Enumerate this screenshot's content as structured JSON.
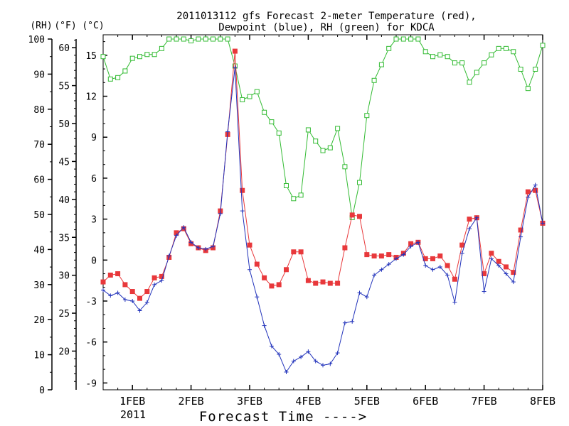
{
  "chart_data": {
    "type": "line",
    "title_line1": "2011013112 gfs Forecast 2-meter Temperature (red),",
    "title_line2": "Dewpoint (blue), RH (green) for KDCA",
    "xlabel": "Forecast Time ---->",
    "year_label": "2011",
    "axis_headers": {
      "rh": "(RH)",
      "f": "(°F)",
      "c": "(°C)"
    },
    "x_ticks": [
      "1FEB",
      "2FEB",
      "3FEB",
      "4FEB",
      "5FEB",
      "6FEB",
      "7FEB",
      "8FEB"
    ],
    "x_tick_positions": [
      1,
      2,
      3,
      4,
      5,
      6,
      7,
      8
    ],
    "xlim": [
      0.5,
      8
    ],
    "rh_ticks": [
      "0",
      "10",
      "20",
      "30",
      "40",
      "50",
      "60",
      "70",
      "80",
      "90",
      "100"
    ],
    "rh_lim": [
      0,
      100
    ],
    "f_ticks": [
      "20",
      "25",
      "30",
      "35",
      "40",
      "45",
      "50",
      "55",
      "60"
    ],
    "c_ticks": [
      "-9",
      "-6",
      "-3",
      "0",
      "3",
      "6",
      "9",
      "12",
      "15"
    ],
    "c_lim": [
      -9.5,
      16.5
    ],
    "grid": false,
    "colors": {
      "temperature": "#e8383b",
      "dewpoint": "#2233bb",
      "rh": "#33bb33"
    },
    "series": [
      {
        "name": "Temperature",
        "units": "C",
        "marker": "filled-square",
        "points": [
          [
            0.5,
            -1.6
          ],
          [
            0.625,
            -1.1
          ],
          [
            0.75,
            -1.0
          ],
          [
            0.875,
            -1.8
          ],
          [
            1.0,
            -2.3
          ],
          [
            1.125,
            -2.8
          ],
          [
            1.25,
            -2.3
          ],
          [
            1.375,
            -1.3
          ],
          [
            1.5,
            -1.2
          ],
          [
            1.625,
            0.2
          ],
          [
            1.75,
            2.0
          ],
          [
            1.875,
            2.3
          ],
          [
            2.0,
            1.2
          ],
          [
            2.125,
            0.9
          ],
          [
            2.25,
            0.7
          ],
          [
            2.375,
            0.9
          ],
          [
            2.5,
            3.6
          ],
          [
            2.625,
            9.2
          ],
          [
            2.75,
            15.3
          ],
          [
            2.875,
            5.1
          ],
          [
            3.0,
            1.1
          ],
          [
            3.125,
            -0.3
          ],
          [
            3.25,
            -1.3
          ],
          [
            3.375,
            -1.9
          ],
          [
            3.5,
            -1.8
          ],
          [
            3.625,
            -0.7
          ],
          [
            3.75,
            0.6
          ],
          [
            3.875,
            0.6
          ],
          [
            4.0,
            -1.5
          ],
          [
            4.125,
            -1.7
          ],
          [
            4.25,
            -1.6
          ],
          [
            4.375,
            -1.7
          ],
          [
            4.5,
            -1.7
          ],
          [
            4.625,
            0.9
          ],
          [
            4.75,
            3.3
          ],
          [
            4.875,
            3.2
          ],
          [
            5.0,
            0.4
          ],
          [
            5.125,
            0.3
          ],
          [
            5.25,
            0.3
          ],
          [
            5.375,
            0.4
          ],
          [
            5.5,
            0.2
          ],
          [
            5.625,
            0.5
          ],
          [
            5.75,
            1.2
          ],
          [
            5.875,
            1.3
          ],
          [
            6.0,
            0.1
          ],
          [
            6.125,
            0.1
          ],
          [
            6.25,
            0.3
          ],
          [
            6.375,
            -0.4
          ],
          [
            6.5,
            -1.4
          ],
          [
            6.625,
            1.1
          ],
          [
            6.75,
            3.0
          ],
          [
            6.875,
            3.1
          ],
          [
            7.0,
            -1.0
          ],
          [
            7.125,
            0.5
          ],
          [
            7.25,
            -0.1
          ],
          [
            7.375,
            -0.5
          ],
          [
            7.5,
            -0.9
          ],
          [
            7.625,
            2.2
          ],
          [
            7.75,
            5.0
          ],
          [
            7.875,
            5.1
          ],
          [
            8.0,
            2.7
          ]
        ]
      },
      {
        "name": "Dewpoint",
        "units": "C",
        "marker": "plus",
        "points": [
          [
            0.5,
            -2.2
          ],
          [
            0.625,
            -2.6
          ],
          [
            0.75,
            -2.4
          ],
          [
            0.875,
            -2.9
          ],
          [
            1.0,
            -3.0
          ],
          [
            1.125,
            -3.7
          ],
          [
            1.25,
            -3.1
          ],
          [
            1.375,
            -1.8
          ],
          [
            1.5,
            -1.5
          ],
          [
            1.625,
            0.3
          ],
          [
            1.75,
            1.8
          ],
          [
            1.875,
            2.4
          ],
          [
            2.0,
            1.3
          ],
          [
            2.125,
            0.9
          ],
          [
            2.25,
            0.8
          ],
          [
            2.375,
            1.0
          ],
          [
            2.5,
            3.4
          ],
          [
            2.625,
            9.4
          ],
          [
            2.75,
            14.1
          ],
          [
            2.875,
            3.6
          ],
          [
            3.0,
            -0.7
          ],
          [
            3.125,
            -2.7
          ],
          [
            3.25,
            -4.8
          ],
          [
            3.375,
            -6.3
          ],
          [
            3.5,
            -6.9
          ],
          [
            3.625,
            -8.2
          ],
          [
            3.75,
            -7.4
          ],
          [
            3.875,
            -7.1
          ],
          [
            4.0,
            -6.7
          ],
          [
            4.125,
            -7.4
          ],
          [
            4.25,
            -7.7
          ],
          [
            4.375,
            -7.6
          ],
          [
            4.5,
            -6.8
          ],
          [
            4.625,
            -4.6
          ],
          [
            4.75,
            -4.5
          ],
          [
            4.875,
            -2.4
          ],
          [
            5.0,
            -2.7
          ],
          [
            5.125,
            -1.1
          ],
          [
            5.25,
            -0.7
          ],
          [
            5.375,
            -0.3
          ],
          [
            5.5,
            0.1
          ],
          [
            5.625,
            0.4
          ],
          [
            5.75,
            1.0
          ],
          [
            5.875,
            1.3
          ],
          [
            6.0,
            -0.4
          ],
          [
            6.125,
            -0.7
          ],
          [
            6.25,
            -0.5
          ],
          [
            6.375,
            -1.1
          ],
          [
            6.5,
            -3.1
          ],
          [
            6.625,
            0.5
          ],
          [
            6.75,
            2.3
          ],
          [
            6.875,
            3.1
          ],
          [
            7.0,
            -2.3
          ],
          [
            7.125,
            0.1
          ],
          [
            7.25,
            -0.4
          ],
          [
            7.375,
            -1.0
          ],
          [
            7.5,
            -1.6
          ],
          [
            7.625,
            1.7
          ],
          [
            7.75,
            4.6
          ],
          [
            7.875,
            5.5
          ],
          [
            8.0,
            2.7
          ]
        ]
      },
      {
        "name": "RH",
        "units": "%",
        "marker": "open-square",
        "points": [
          [
            0.5,
            95.0
          ],
          [
            0.625,
            88.6
          ],
          [
            0.75,
            89.0
          ],
          [
            0.875,
            90.9
          ],
          [
            1.0,
            94.5
          ],
          [
            1.125,
            95.0
          ],
          [
            1.25,
            95.6
          ],
          [
            1.375,
            95.6
          ],
          [
            1.5,
            97.3
          ],
          [
            1.625,
            100.0
          ],
          [
            1.75,
            100.0
          ],
          [
            1.875,
            100.0
          ],
          [
            2.0,
            99.5
          ],
          [
            2.125,
            100.0
          ],
          [
            2.25,
            100.0
          ],
          [
            2.375,
            100.0
          ],
          [
            2.5,
            100.0
          ],
          [
            2.625,
            100.0
          ],
          [
            2.75,
            92.3
          ],
          [
            2.875,
            82.7
          ],
          [
            3.0,
            83.6
          ],
          [
            3.125,
            85.0
          ],
          [
            3.25,
            79.1
          ],
          [
            3.375,
            76.4
          ],
          [
            3.5,
            73.2
          ],
          [
            3.625,
            58.2
          ],
          [
            3.75,
            54.5
          ],
          [
            3.875,
            55.5
          ],
          [
            4.0,
            74.1
          ],
          [
            4.125,
            70.9
          ],
          [
            4.25,
            68.2
          ],
          [
            4.375,
            69.0
          ],
          [
            4.5,
            74.5
          ],
          [
            4.625,
            63.6
          ],
          [
            4.75,
            49.1
          ],
          [
            4.875,
            59.1
          ],
          [
            5.0,
            78.2
          ],
          [
            5.125,
            88.2
          ],
          [
            5.25,
            92.7
          ],
          [
            5.375,
            97.3
          ],
          [
            5.5,
            100.0
          ],
          [
            5.625,
            100.0
          ],
          [
            5.75,
            100.0
          ],
          [
            5.875,
            100.0
          ],
          [
            6.0,
            96.4
          ],
          [
            6.125,
            95.0
          ],
          [
            6.25,
            95.5
          ],
          [
            6.375,
            95.0
          ],
          [
            6.5,
            93.2
          ],
          [
            6.625,
            93.2
          ],
          [
            6.75,
            87.7
          ],
          [
            6.875,
            90.5
          ],
          [
            7.0,
            93.2
          ],
          [
            7.125,
            95.5
          ],
          [
            7.25,
            97.3
          ],
          [
            7.375,
            97.3
          ],
          [
            7.5,
            96.4
          ],
          [
            7.625,
            91.4
          ],
          [
            7.75,
            85.9
          ],
          [
            7.875,
            91.4
          ],
          [
            8.0,
            98.2
          ]
        ]
      }
    ]
  }
}
